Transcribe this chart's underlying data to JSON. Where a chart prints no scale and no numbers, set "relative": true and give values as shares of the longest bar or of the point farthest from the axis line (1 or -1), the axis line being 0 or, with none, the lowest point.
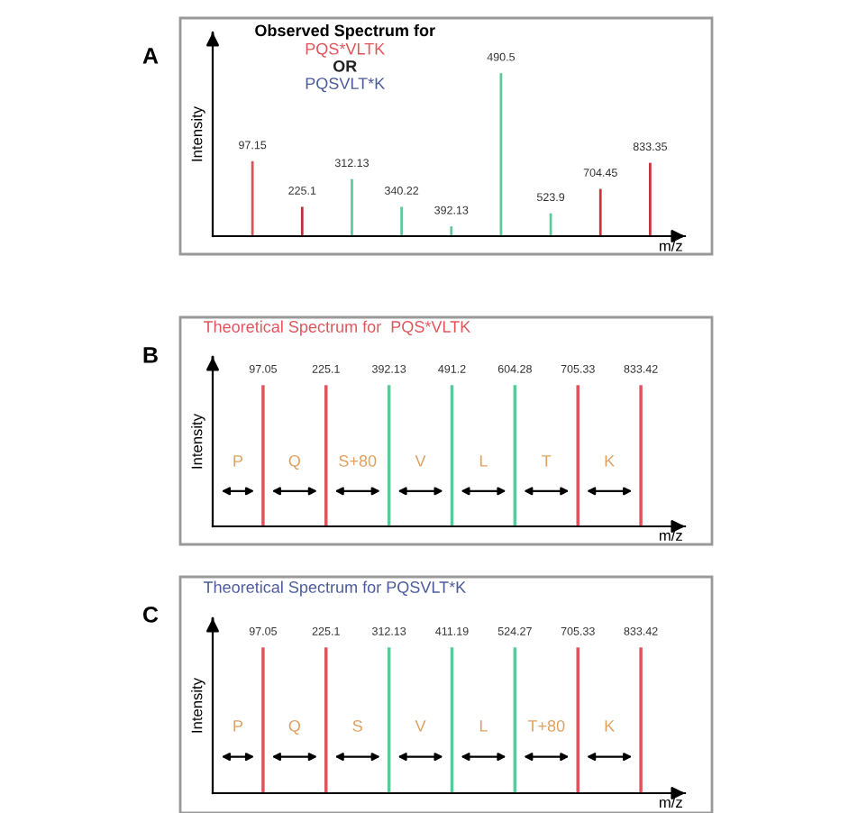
{
  "chart_data": [
    {
      "type": "bar",
      "relative": true,
      "title": "Observed Spectrum for",
      "xlabel": "m/z",
      "ylabel": "Intensity",
      "categories": [
        "97.15",
        "225.1",
        "312.13",
        "340.22",
        "392.13",
        "490.5",
        "523.9",
        "704.45",
        "833.35"
      ],
      "values": [
        0.46,
        0.18,
        0.35,
        0.18,
        0.06,
        1,
        0.14,
        0.29,
        0.45
      ],
      "colors": [
        "#d9545a",
        "#b8323a",
        "#5cc99a",
        "#5cc99a",
        "#5cc99a",
        "#5cc99a",
        "#5cc99a",
        "#c9343c",
        "#c9343c"
      ],
      "annotations": [
        "A",
        "PQS*VLTK",
        "OR",
        "PQSVLT*K"
      ]
    },
    {
      "type": "bar",
      "relative": true,
      "title": "Theoretical Spectrum for  PQS*VLTK",
      "xlabel": "m/z",
      "ylabel": "Intensity",
      "categories": [
        "97.05",
        "225.1",
        "392.13",
        "491.2",
        "604.28",
        "705.33",
        "833.42"
      ],
      "values": [
        1,
        1,
        1,
        1,
        1,
        1,
        1
      ],
      "colors": [
        "#e0555c",
        "#e0555c",
        "#5cc99a",
        "#5cc99a",
        "#5cc99a",
        "#e0555c",
        "#e0555c"
      ],
      "annotations": [
        "B",
        "P",
        "Q",
        "S+80",
        "V",
        "L",
        "T",
        "K"
      ]
    },
    {
      "type": "bar",
      "relative": true,
      "title": "Theoretical Spectrum for PQSVLT*K",
      "xlabel": "m/z",
      "ylabel": "Intensity",
      "categories": [
        "97.05",
        "225.1",
        "312.13",
        "411.19",
        "524.27",
        "705.33",
        "833.42"
      ],
      "values": [
        1,
        1,
        1,
        1,
        1,
        1,
        1
      ],
      "colors": [
        "#e0555c",
        "#e0555c",
        "#5cc99a",
        "#5cc99a",
        "#5cc99a",
        "#e0555c",
        "#e0555c"
      ],
      "annotations": [
        "C",
        "P",
        "Q",
        "S",
        "V",
        "L",
        "T+80",
        "K"
      ]
    }
  ]
}
